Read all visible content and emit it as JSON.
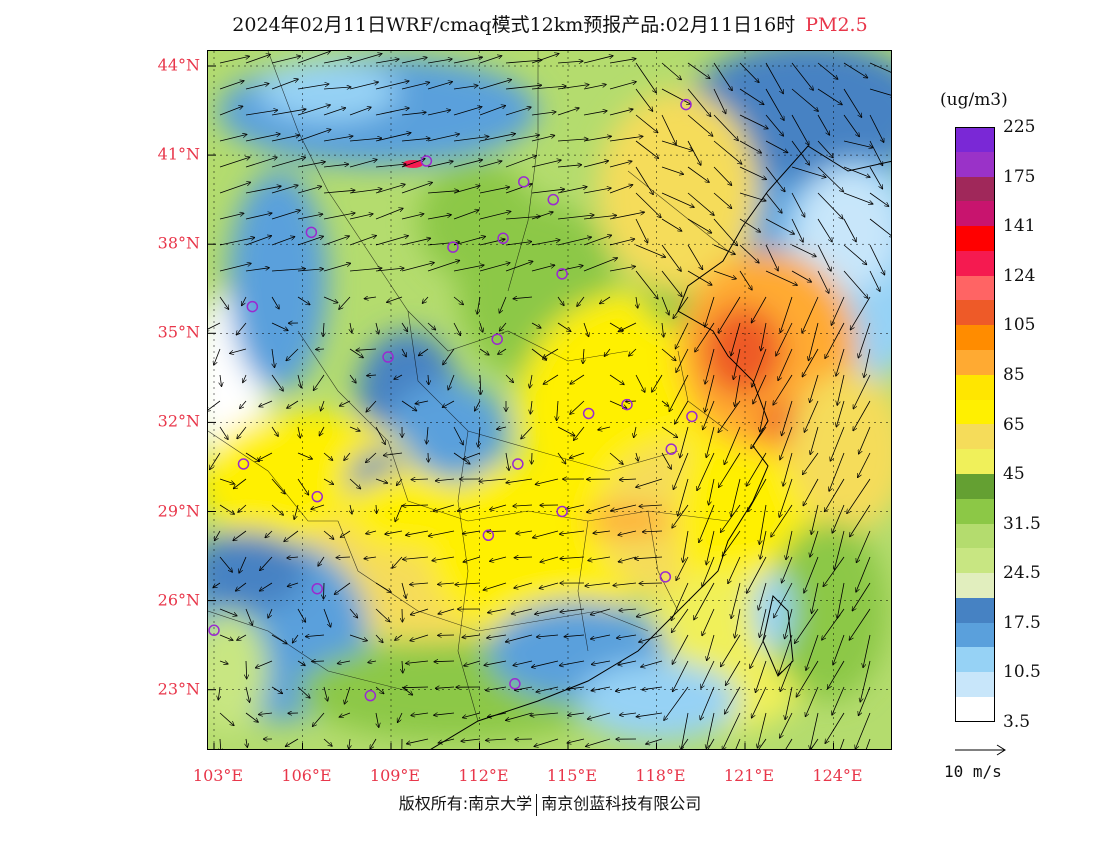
{
  "title": {
    "text": "2024年02月11日WRF/cmaq模式12km预报产品:02月11日16时",
    "pollutant": "PM2.5"
  },
  "axes": {
    "lat_ticks": [
      "44°N",
      "41°N",
      "38°N",
      "35°N",
      "32°N",
      "29°N",
      "26°N",
      "23°N"
    ],
    "lon_ticks": [
      "103°E",
      "106°E",
      "109°E",
      "112°E",
      "115°E",
      "118°E",
      "121°E",
      "124°E"
    ],
    "lat_values": [
      44,
      41,
      38,
      35,
      32,
      29,
      26,
      23
    ],
    "lon_values": [
      103,
      106,
      109,
      112,
      115,
      118,
      121,
      124
    ],
    "tick_color": "#e8364a"
  },
  "legend": {
    "unit": "(ug/m3)",
    "colors": [
      "#7a28d6",
      "#9a32c8",
      "#a0285a",
      "#c8146e",
      "#ff0000",
      "#f51a50",
      "#ff6464",
      "#ee5a28",
      "#ff8c00",
      "#ffaa32",
      "#ffe600",
      "#fff000",
      "#f5dc5a",
      "#f0f05a",
      "#64a032",
      "#8cc846",
      "#b4dc6e",
      "#c8e682",
      "#e1eebe",
      "#4682c3",
      "#5aa0dc",
      "#96d2f5",
      "#c8e6fa",
      "#ffffff"
    ],
    "labels": [
      {
        "text": "225",
        "cell": 1
      },
      {
        "text": "175",
        "cell": 3
      },
      {
        "text": "141",
        "cell": 5
      },
      {
        "text": "124",
        "cell": 7
      },
      {
        "text": "105",
        "cell": 9
      },
      {
        "text": "85",
        "cell": 11
      },
      {
        "text": "65",
        "cell": 13
      },
      {
        "text": "45",
        "cell": 15
      },
      {
        "text": "31.5",
        "cell": 17
      },
      {
        "text": "24.5",
        "cell": 19
      },
      {
        "text": "17.5",
        "cell": 21
      },
      {
        "text": "10.5",
        "cell": 23
      },
      {
        "text": "3.5",
        "cell": 25
      }
    ]
  },
  "wind_reference": {
    "label": "10 m/s"
  },
  "footer": {
    "copyright_left": "版权所有:南京大学",
    "copyright_right": "南京创蓝科技有限公司"
  },
  "stations": [
    {
      "lon": 119.0,
      "lat": 42.7
    },
    {
      "lon": 110.2,
      "lat": 40.8
    },
    {
      "lon": 113.5,
      "lat": 40.1
    },
    {
      "lon": 114.5,
      "lat": 39.5
    },
    {
      "lon": 106.3,
      "lat": 38.4
    },
    {
      "lon": 111.1,
      "lat": 37.9
    },
    {
      "lon": 112.8,
      "lat": 38.2
    },
    {
      "lon": 114.8,
      "lat": 37.0
    },
    {
      "lon": 104.3,
      "lat": 35.9
    },
    {
      "lon": 112.6,
      "lat": 34.8
    },
    {
      "lon": 108.9,
      "lat": 34.2
    },
    {
      "lon": 115.7,
      "lat": 32.3
    },
    {
      "lon": 117.0,
      "lat": 32.6
    },
    {
      "lon": 119.2,
      "lat": 32.2
    },
    {
      "lon": 118.5,
      "lat": 31.1
    },
    {
      "lon": 104.0,
      "lat": 30.6
    },
    {
      "lon": 113.3,
      "lat": 30.6
    },
    {
      "lon": 106.5,
      "lat": 29.5
    },
    {
      "lon": 114.8,
      "lat": 29.0
    },
    {
      "lon": 112.3,
      "lat": 28.2
    },
    {
      "lon": 118.3,
      "lat": 26.8
    },
    {
      "lon": 106.5,
      "lat": 26.4
    },
    {
      "lon": 103.0,
      "lat": 25.0
    },
    {
      "lon": 108.3,
      "lat": 22.8
    },
    {
      "lon": 113.2,
      "lat": 23.2
    }
  ],
  "station_color": "#9a2ad0"
}
